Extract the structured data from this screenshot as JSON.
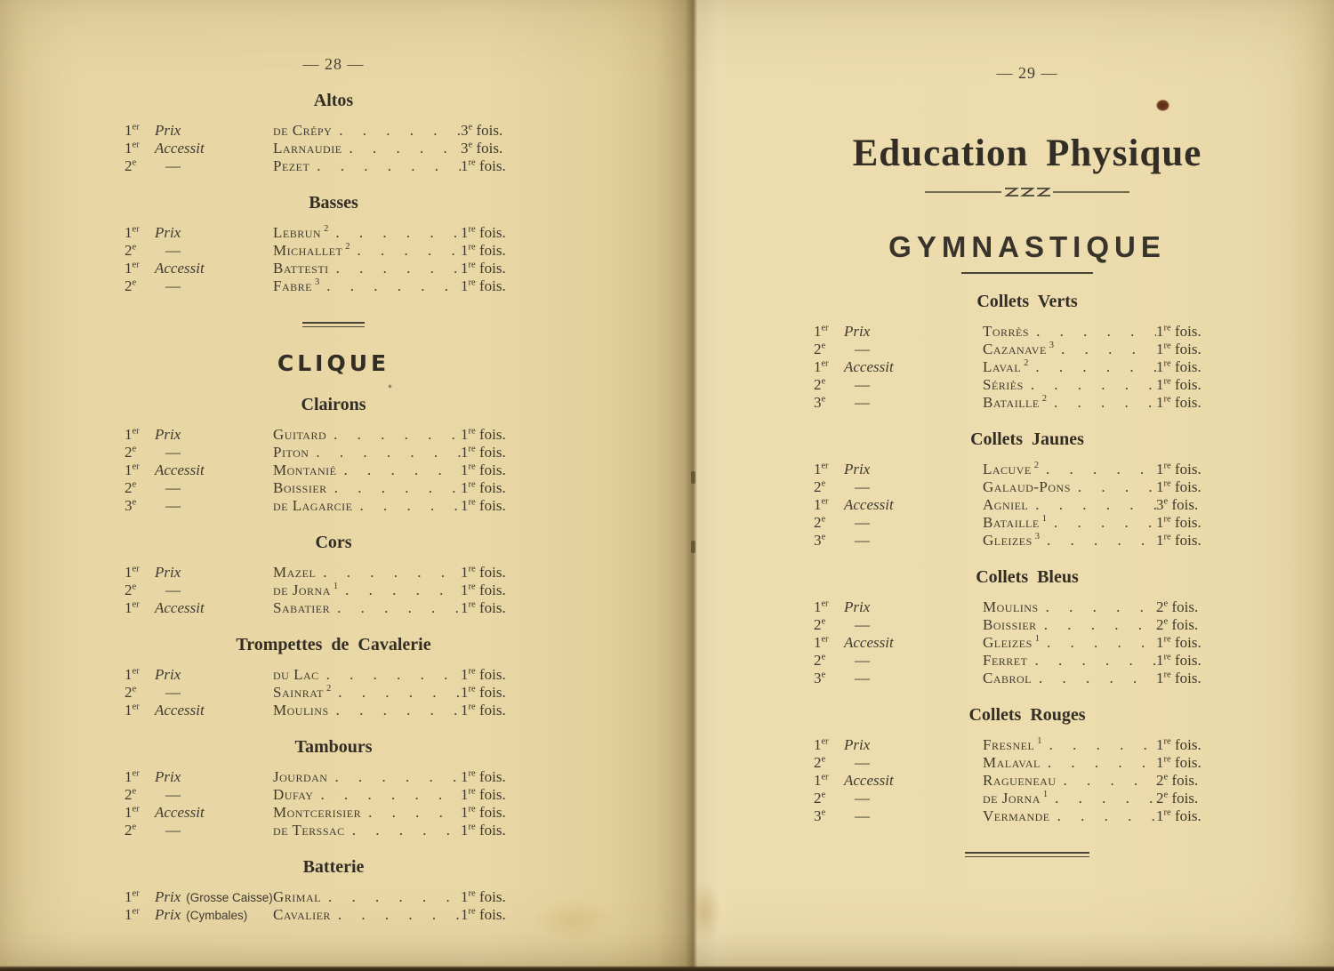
{
  "colors": {
    "paper_left": "#e8d6a4",
    "paper_right": "#ecdcae",
    "ink": "#3f3a2f",
    "book_edge": "#2a2115"
  },
  "left_page": {
    "page_number": "— 28 —",
    "blocks": [
      {
        "type": "section",
        "title": "Altos",
        "rows": [
          {
            "rank": {
              "n": "1",
              "sup": "er"
            },
            "label": "Prix",
            "name": "de Crépy",
            "name_sup": "",
            "times": {
              "n": "3",
              "sup": "e",
              "word": "fois."
            }
          },
          {
            "rank": {
              "n": "1",
              "sup": "er"
            },
            "label": "Accessit",
            "name": "Larnaudie",
            "name_sup": "",
            "times": {
              "n": "3",
              "sup": "e",
              "word": "fois."
            }
          },
          {
            "rank": {
              "n": "2",
              "sup": "e"
            },
            "label": "—",
            "name": "Pezet",
            "name_sup": "",
            "times": {
              "n": "1",
              "sup": "re",
              "word": "fois."
            }
          }
        ]
      },
      {
        "type": "section",
        "title": "Basses",
        "rows": [
          {
            "rank": {
              "n": "1",
              "sup": "er"
            },
            "label": "Prix",
            "name": "Lebrun",
            "name_sup": "2",
            "times": {
              "n": "1",
              "sup": "re",
              "word": "fois."
            }
          },
          {
            "rank": {
              "n": "2",
              "sup": "e"
            },
            "label": "—",
            "name": "Michallet",
            "name_sup": "2",
            "times": {
              "n": "1",
              "sup": "re",
              "word": "fois."
            }
          },
          {
            "rank": {
              "n": "1",
              "sup": "er"
            },
            "label": "Accessit",
            "name": "Battesti",
            "name_sup": "",
            "times": {
              "n": "1",
              "sup": "re",
              "word": "fois."
            }
          },
          {
            "rank": {
              "n": "2",
              "sup": "e"
            },
            "label": "—",
            "name": "Fabre",
            "name_sup": "3",
            "times": {
              "n": "1",
              "sup": "re",
              "word": "fois."
            }
          }
        ]
      },
      {
        "type": "double_rule"
      },
      {
        "type": "part_title",
        "text": "CLIQUE"
      },
      {
        "type": "section",
        "title": "Clairons",
        "rows": [
          {
            "rank": {
              "n": "1",
              "sup": "er"
            },
            "label": "Prix",
            "name": "Guitard",
            "name_sup": "",
            "times": {
              "n": "1",
              "sup": "re",
              "word": "fois."
            }
          },
          {
            "rank": {
              "n": "2",
              "sup": "e"
            },
            "label": "—",
            "name": "Piton",
            "name_sup": "",
            "times": {
              "n": "1",
              "sup": "re",
              "word": "fois."
            }
          },
          {
            "rank": {
              "n": "1",
              "sup": "er"
            },
            "label": "Accessit",
            "name": "Montanié",
            "name_sup": "",
            "times": {
              "n": "1",
              "sup": "re",
              "word": "fois."
            }
          },
          {
            "rank": {
              "n": "2",
              "sup": "e"
            },
            "label": "—",
            "name": "Boissier",
            "name_sup": "",
            "times": {
              "n": "1",
              "sup": "re",
              "word": "fois."
            }
          },
          {
            "rank": {
              "n": "3",
              "sup": "e"
            },
            "label": "—",
            "name": "de Lagarcie",
            "name_sup": "",
            "times": {
              "n": "1",
              "sup": "re",
              "word": "fois."
            }
          }
        ]
      },
      {
        "type": "section",
        "title": "Cors",
        "rows": [
          {
            "rank": {
              "n": "1",
              "sup": "er"
            },
            "label": "Prix",
            "name": "Mazel",
            "name_sup": "",
            "times": {
              "n": "1",
              "sup": "re",
              "word": "fois."
            }
          },
          {
            "rank": {
              "n": "2",
              "sup": "e"
            },
            "label": "—",
            "name": "de Jorna",
            "name_sup": "1",
            "times": {
              "n": "1",
              "sup": "re",
              "word": "fois."
            }
          },
          {
            "rank": {
              "n": "1",
              "sup": "er"
            },
            "label": "Accessit",
            "name": "Sabatier",
            "name_sup": "",
            "times": {
              "n": "1",
              "sup": "re",
              "word": "fois."
            }
          }
        ]
      },
      {
        "type": "section",
        "title": "Trompettes de Cavalerie",
        "rows": [
          {
            "rank": {
              "n": "1",
              "sup": "er"
            },
            "label": "Prix",
            "name": "du Lac",
            "name_sup": "",
            "times": {
              "n": "1",
              "sup": "re",
              "word": "fois."
            }
          },
          {
            "rank": {
              "n": "2",
              "sup": "e"
            },
            "label": "—",
            "name": "Sainrat",
            "name_sup": "2",
            "times": {
              "n": "1",
              "sup": "re",
              "word": "fois."
            }
          },
          {
            "rank": {
              "n": "1",
              "sup": "er"
            },
            "label": "Accessit",
            "name": "Moulins",
            "name_sup": "",
            "times": {
              "n": "1",
              "sup": "re",
              "word": "fois."
            }
          }
        ]
      },
      {
        "type": "section",
        "title": "Tambours",
        "rows": [
          {
            "rank": {
              "n": "1",
              "sup": "er"
            },
            "label": "Prix",
            "name": "Jourdan",
            "name_sup": "",
            "times": {
              "n": "1",
              "sup": "re",
              "word": "fois."
            }
          },
          {
            "rank": {
              "n": "2",
              "sup": "e"
            },
            "label": "—",
            "name": "Dufay",
            "name_sup": "",
            "times": {
              "n": "1",
              "sup": "re",
              "word": "fois."
            }
          },
          {
            "rank": {
              "n": "1",
              "sup": "er"
            },
            "label": "Accessit",
            "name": "Montcerisier",
            "name_sup": "",
            "times": {
              "n": "1",
              "sup": "re",
              "word": "fois."
            }
          },
          {
            "rank": {
              "n": "2",
              "sup": "e"
            },
            "label": "—",
            "name": "de Terssac",
            "name_sup": "",
            "times": {
              "n": "1",
              "sup": "re",
              "word": "fois."
            }
          }
        ]
      },
      {
        "type": "section",
        "title": "Batterie",
        "rows": [
          {
            "rank": {
              "n": "1",
              "sup": "er"
            },
            "label": "Prix",
            "note": "(Grosse Caisse)",
            "name": "Grimal",
            "name_sup": "",
            "times": {
              "n": "1",
              "sup": "re",
              "word": "fois."
            }
          },
          {
            "rank": {
              "n": "1",
              "sup": "er"
            },
            "label": "Prix",
            "note": "(Cymbales)",
            "name": "Cavalier",
            "name_sup": "",
            "times": {
              "n": "1",
              "sup": "re",
              "word": "fois."
            }
          }
        ]
      }
    ]
  },
  "right_page": {
    "page_number": "— 29 —",
    "title": "Education Physique",
    "subtitle": "GYMNASTIQUE",
    "blocks": [
      {
        "type": "section",
        "title": "Collets Verts",
        "rows": [
          {
            "rank": {
              "n": "1",
              "sup": "er"
            },
            "label": "Prix",
            "name": "Torrès",
            "name_sup": "",
            "times": {
              "n": "1",
              "sup": "re",
              "word": "fois."
            }
          },
          {
            "rank": {
              "n": "2",
              "sup": "e"
            },
            "label": "—",
            "name": "Cazanave",
            "name_sup": "3",
            "times": {
              "n": "1",
              "sup": "re",
              "word": "fois."
            }
          },
          {
            "rank": {
              "n": "1",
              "sup": "er"
            },
            "label": "Accessit",
            "name": "Laval",
            "name_sup": "2",
            "times": {
              "n": "1",
              "sup": "re",
              "word": "fois."
            }
          },
          {
            "rank": {
              "n": "2",
              "sup": "e"
            },
            "label": "—",
            "name": "Sériès",
            "name_sup": "",
            "times": {
              "n": "1",
              "sup": "re",
              "word": "fois."
            }
          },
          {
            "rank": {
              "n": "3",
              "sup": "e"
            },
            "label": "—",
            "name": "Bataille",
            "name_sup": "2",
            "times": {
              "n": "1",
              "sup": "re",
              "word": "fois."
            }
          }
        ]
      },
      {
        "type": "section",
        "title": "Collets Jaunes",
        "rows": [
          {
            "rank": {
              "n": "1",
              "sup": "er"
            },
            "label": "Prix",
            "name": "Lacuve",
            "name_sup": "2",
            "times": {
              "n": "1",
              "sup": "re",
              "word": "fois."
            }
          },
          {
            "rank": {
              "n": "2",
              "sup": "e"
            },
            "label": "—",
            "name": "Galaud-Pons",
            "name_sup": "",
            "times": {
              "n": "1",
              "sup": "re",
              "word": "fois."
            }
          },
          {
            "rank": {
              "n": "1",
              "sup": "er"
            },
            "label": "Accessit",
            "name": "Agniel",
            "name_sup": "",
            "times": {
              "n": "3",
              "sup": "e",
              "word": "fois."
            }
          },
          {
            "rank": {
              "n": "2",
              "sup": "e"
            },
            "label": "—",
            "name": "Bataille",
            "name_sup": "1",
            "times": {
              "n": "1",
              "sup": "re",
              "word": "fois."
            }
          },
          {
            "rank": {
              "n": "3",
              "sup": "e"
            },
            "label": "—",
            "name": "Gleizes",
            "name_sup": "3",
            "times": {
              "n": "1",
              "sup": "re",
              "word": "fois."
            }
          }
        ]
      },
      {
        "type": "section",
        "title": "Collets Bleus",
        "rows": [
          {
            "rank": {
              "n": "1",
              "sup": "er"
            },
            "label": "Prix",
            "name": "Moulins",
            "name_sup": "",
            "times": {
              "n": "2",
              "sup": "e",
              "word": "fois."
            }
          },
          {
            "rank": {
              "n": "2",
              "sup": "e"
            },
            "label": "—",
            "name": "Boissier",
            "name_sup": "",
            "times": {
              "n": "2",
              "sup": "e",
              "word": "fois."
            }
          },
          {
            "rank": {
              "n": "1",
              "sup": "er"
            },
            "label": "Accessit",
            "name": "Gleizes",
            "name_sup": "1",
            "times": {
              "n": "1",
              "sup": "re",
              "word": "fois."
            }
          },
          {
            "rank": {
              "n": "2",
              "sup": "e"
            },
            "label": "—",
            "name": "Ferret",
            "name_sup": "",
            "times": {
              "n": "1",
              "sup": "re",
              "word": "fois."
            }
          },
          {
            "rank": {
              "n": "3",
              "sup": "e"
            },
            "label": "—",
            "name": "Cabrol",
            "name_sup": "",
            "times": {
              "n": "1",
              "sup": "re",
              "word": "fois."
            }
          }
        ]
      },
      {
        "type": "section",
        "title": "Collets Rouges",
        "rows": [
          {
            "rank": {
              "n": "1",
              "sup": "er"
            },
            "label": "Prix",
            "name": "Fresnel",
            "name_sup": "1",
            "times": {
              "n": "1",
              "sup": "re",
              "word": "fois."
            }
          },
          {
            "rank": {
              "n": "2",
              "sup": "e"
            },
            "label": "—",
            "name": "Malaval",
            "name_sup": "",
            "times": {
              "n": "1",
              "sup": "re",
              "word": "fois."
            }
          },
          {
            "rank": {
              "n": "1",
              "sup": "er"
            },
            "label": "Accessit",
            "name": "Ragueneau",
            "name_sup": "",
            "times": {
              "n": "2",
              "sup": "e",
              "word": "fois."
            }
          },
          {
            "rank": {
              "n": "2",
              "sup": "e"
            },
            "label": "—",
            "name": "de Jorna",
            "name_sup": "1",
            "times": {
              "n": "2",
              "sup": "e",
              "word": "fois."
            }
          },
          {
            "rank": {
              "n": "3",
              "sup": "e"
            },
            "label": "—",
            "name": "Vermande",
            "name_sup": "",
            "times": {
              "n": "1",
              "sup": "re",
              "word": "fois."
            }
          }
        ]
      }
    ]
  }
}
